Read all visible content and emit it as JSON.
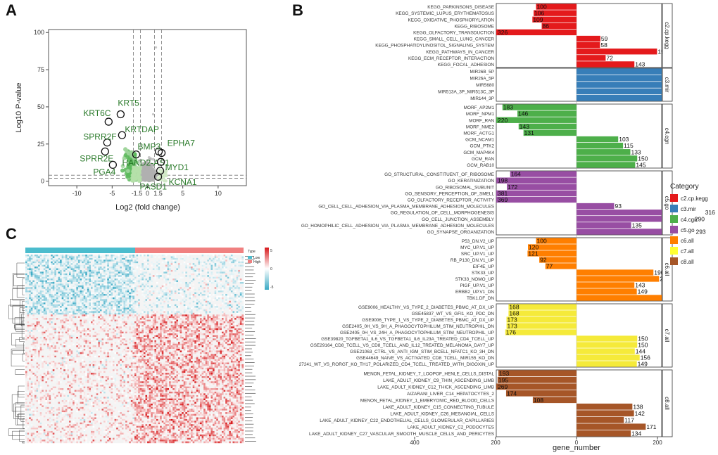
{
  "panels": {
    "a_letter": "A",
    "b_letter": "B",
    "c_letter": "C"
  },
  "chart_data": [
    {
      "type": "scatter",
      "panel": "A",
      "xlabel": "Log2 (fold change)",
      "ylabel": "Log10 P-value",
      "xlim": [
        -14,
        14
      ],
      "ylim": [
        -3,
        102
      ],
      "xticks": [
        -10,
        -5,
        0,
        5,
        10
      ],
      "yticks": [
        0,
        25,
        50,
        75,
        100
      ],
      "threshold_x": [
        -1.5,
        1.5
      ],
      "labels": [
        {
          "text": "KRT6C",
          "x": -5.5,
          "y": 40,
          "circled": true
        },
        {
          "text": "KRT5",
          "x": -3.8,
          "y": 45,
          "circled": true
        },
        {
          "text": "KRTDAP",
          "x": -3.6,
          "y": 31,
          "circled": true
        },
        {
          "text": "SPRR2F",
          "x": -5.7,
          "y": 26,
          "circled": true
        },
        {
          "text": "SPRR2E",
          "x": -6.0,
          "y": 20,
          "circled": true
        },
        {
          "text": "PGA4",
          "x": -4.9,
          "y": 11,
          "circled": true
        },
        {
          "text": "HAND2-AS1",
          "x": -1.6,
          "y": 18,
          "circled": true
        },
        {
          "text": "BMP3",
          "x": 1.6,
          "y": 20,
          "circled": true
        },
        {
          "text": "EPHA7",
          "x": 2.0,
          "y": 19,
          "circled": true
        },
        {
          "text": "MYD1",
          "x": 1.9,
          "y": 13,
          "circled": true
        },
        {
          "text": "KCNA1",
          "x": 1.8,
          "y": 7,
          "circled": true
        },
        {
          "text": "PASD1",
          "x": 1.5,
          "y": 3,
          "circled": true
        }
      ]
    },
    {
      "type": "bar",
      "panel": "B",
      "orientation": "horizontal",
      "xlabel": "gene_number",
      "xlim": [
        -400,
        420
      ],
      "xticks": [
        400,
        200,
        0,
        200,
        400
      ],
      "legend_title": "Category",
      "legend": [
        {
          "name": "c2.cp.kegg",
          "color": "#e41a1c"
        },
        {
          "name": "c3.mir",
          "color": "#377eb8"
        },
        {
          "name": "c4.cgn",
          "color": "#4daf4a"
        },
        {
          "name": "c5.go",
          "color": "#984ea3"
        },
        {
          "name": "c6.all",
          "color": "#ff7f00"
        },
        {
          "name": "c7.all",
          "color": "#ffff33"
        },
        {
          "name": "c8.all",
          "color": "#a65628"
        }
      ],
      "groups": [
        {
          "strip": "c2.cp.kegg",
          "color": "#e41a1c",
          "bars": [
            {
              "label": "KEGG_PARKINSONS_DISEASE",
              "value": -100
            },
            {
              "label": "KEGG_SYSTEMIC_LUPUS_ERYTHEMATOSUS",
              "value": -106
            },
            {
              "label": "KEGG_OXIDATIVE_PHOSPHORYLATION",
              "value": -109
            },
            {
              "label": "KEGG_RIBOSOME",
              "value": -86
            },
            {
              "label": "KEGG_OLFACTORY_TRANSDUCTION",
              "value": -326
            },
            {
              "label": "KEGG_SMALL_CELL_LUNG_CANCER",
              "value": 59
            },
            {
              "label": "KEGG_PHOSPHATIDYLINOSITOL_SIGNALING_SYSTEM",
              "value": 58
            },
            {
              "label": "KEGG_PATHWAYS_IN_CANCER",
              "value": 199
            },
            {
              "label": "KEGG_ECM_RECEPTOR_INTERACTION",
              "value": 72
            },
            {
              "label": "KEGG_FOCAL_ADHESION",
              "value": 143
            }
          ]
        },
        {
          "strip": "c3.mir",
          "color": "#377eb8",
          "bars": [
            {
              "label": "MIR26B_5P",
              "value": 381
            },
            {
              "label": "MIR26A_5P",
              "value": 381
            },
            {
              "label": "MIR5680",
              "value": 368
            },
            {
              "label": "MIR513A_3P_MIR513C_3P",
              "value": 359
            },
            {
              "label": "MIR144_3P",
              "value": 397
            }
          ]
        },
        {
          "strip": "c4.cgn",
          "color": "#4daf4a",
          "bars": [
            {
              "label": "MORF_AP2M1",
              "value": -183
            },
            {
              "label": "MORF_NPM1",
              "value": -146
            },
            {
              "label": "MORF_RAN",
              "value": -220
            },
            {
              "label": "MORF_NME2",
              "value": -143
            },
            {
              "label": "MORF_ACTG1",
              "value": -131
            },
            {
              "label": "GCM_NCAM1",
              "value": 103
            },
            {
              "label": "GCM_PTK2",
              "value": 115
            },
            {
              "label": "GCM_MAP4K4",
              "value": 133
            },
            {
              "label": "GCM_RAN",
              "value": 150
            },
            {
              "label": "GCM_RAB10",
              "value": 145
            }
          ]
        },
        {
          "strip": "c5.go",
          "color": "#984ea3",
          "bars": [
            {
              "label": "GO_STRUCTURAL_CONSTITUENT_OF_RIBOSOME",
              "value": -164
            },
            {
              "label": "GO_KERATINIZATION",
              "value": -198
            },
            {
              "label": "GO_RIBOSOMAL_SUBUNIT",
              "value": -172
            },
            {
              "label": "GO_SENSORY_PERCEPTION_OF_SMELL",
              "value": -381
            },
            {
              "label": "GO_OLFACTORY_RECEPTOR_ACTIVITY",
              "value": -369
            },
            {
              "label": "GO_CELL_CELL_ADHESION_VIA_PLASMA_MEMBRANE_ADHESION_MOLECULES",
              "value": 93
            },
            {
              "label": "GO_REGULATION_OF_CELL_MORPHOGENESIS",
              "value": 316
            },
            {
              "label": "GO_CELL_JUNCTION_ASSEMBLY",
              "value": 290
            },
            {
              "label": "GO_HOMOPHILIC_CELL_ADHESION_VIA_PLASMA_MEMBRANE_ADHESION_MOLECULES",
              "value": 135
            },
            {
              "label": "GO_SYNAPSE_ORGANIZATION",
              "value": 293
            }
          ]
        },
        {
          "strip": "c6.all",
          "color": "#ff7f00",
          "bars": [
            {
              "label": "P53_DN.V2_UP",
              "value": -100
            },
            {
              "label": "MYC_UP.V1_UP",
              "value": -120
            },
            {
              "label": "SRC_UP.V1_UP",
              "value": -121
            },
            {
              "label": "RB_P130_DN.V1_UP",
              "value": -92
            },
            {
              "label": "EIF4E_UP",
              "value": -77
            },
            {
              "label": "STK33_UP",
              "value": 190
            },
            {
              "label": "STK33_NOMO_UP",
              "value": 204
            },
            {
              "label": "PIGF_UP.V1_UP",
              "value": 143
            },
            {
              "label": "ERBB2_UP.V1_DN",
              "value": 149
            },
            {
              "label": "TBK1.DF_DN",
              "value": 211
            }
          ]
        },
        {
          "strip": "c7.all",
          "color": "#f5ea3a",
          "bars": [
            {
              "label": "GSE9006_HEALTHY_VS_TYPE_2_DIABETES_PBMC_AT_DX_UP",
              "value": -168
            },
            {
              "label": "GSE45837_WT_VS_GFI1_KO_PDC_DN",
              "value": -168
            },
            {
              "label": "GSE9006_TYPE_1_VS_TYPE_2_DIABETES_PBMC_AT_DX_UP",
              "value": -173
            },
            {
              "label": "GSE2405_0H_VS_9H_A_PHAGOCYTOPHILUM_STIM_NEUTROPHIL_DN",
              "value": -173
            },
            {
              "label": "GSE2405_0H_VS_24H_A_PHAGOCYTOPHILUM_STIM_NEUTROPHIL_UP",
              "value": -176
            },
            {
              "label": "GSE39820_TGFBETA1_IL6_VS_TGFBETA1_IL6_IL23A_TREATED_CD4_TCELL_UP",
              "value": 150
            },
            {
              "label": "GSE29164_CD8_TCELL_VS_CD8_TCELL_AND_IL12_TREATED_MELANOMA_DAY7_UP",
              "value": 150
            },
            {
              "label": "GSE21063_CTRL_VS_ANTI_IGM_STIM_BCELL_NFATC1_KO_3H_DN",
              "value": 144
            },
            {
              "label": "GSE44649_NAIVE_VS_ACTIVATED_CD8_TCELL_MIR155_KO_DN",
              "value": 156
            },
            {
              "label": "27241_WT_VS_RORGT_KO_TH17_POLARIZED_CD4_TCELL_TREATED_WITH_DIGOXIN_UP",
              "value": 149
            }
          ]
        },
        {
          "strip": "c8.all",
          "color": "#a65628",
          "bars": [
            {
              "label": "MENON_FETAL_KIDNEY_7_LOOPOF_HENLE_CELLS_DISTAL",
              "value": -193
            },
            {
              "label": "LAKE_ADULT_KIDNEY_C9_THIN_ASCENDING_LIMB",
              "value": -195
            },
            {
              "label": "LAKE_ADULT_KIDNEY_C12_THICK_ASCENDING_LIMB",
              "value": -269
            },
            {
              "label": "AIZARANI_LIVER_C14_HEPATOCYTES_2",
              "value": -174
            },
            {
              "label": "MENON_FETAL_KIDNEY_1_EMBRYONIC_RED_BLOOD_CELLS",
              "value": -108
            },
            {
              "label": "LAKE_ADULT_KIDNEY_C15_CONNECTING_TUBULE",
              "value": 138
            },
            {
              "label": "LAKE_ADULT_KIDNEY_C26_MESANGIAL_CELLS",
              "value": 142
            },
            {
              "label": "LAKE_ADULT_KIDNEY_C22_ENDOTHELIAL_CELLS_GLOMERULAR_CAPILLARIES",
              "value": 117
            },
            {
              "label": "LAKE_ADULT_KIDNEY_C2_PODOCYTES",
              "value": 171
            },
            {
              "label": "LAKE_ADULT_KIDNEY_C27_VASCULAR_SMOOTH_MUSCLE_CELLS_AND_PERICYTES",
              "value": 134
            }
          ]
        }
      ]
    },
    {
      "type": "heatmap",
      "panel": "C",
      "annotation_title": "Type",
      "annotation_levels": [
        {
          "name": "Low",
          "color": "#4bbccd"
        },
        {
          "name": "High",
          "color": "#f08080"
        }
      ],
      "color_scale": {
        "low": "#3aa9c4",
        "mid": "#ffffff",
        "high": "#d7191c"
      },
      "color_ticks": [
        "5",
        "0",
        "-5"
      ]
    }
  ]
}
